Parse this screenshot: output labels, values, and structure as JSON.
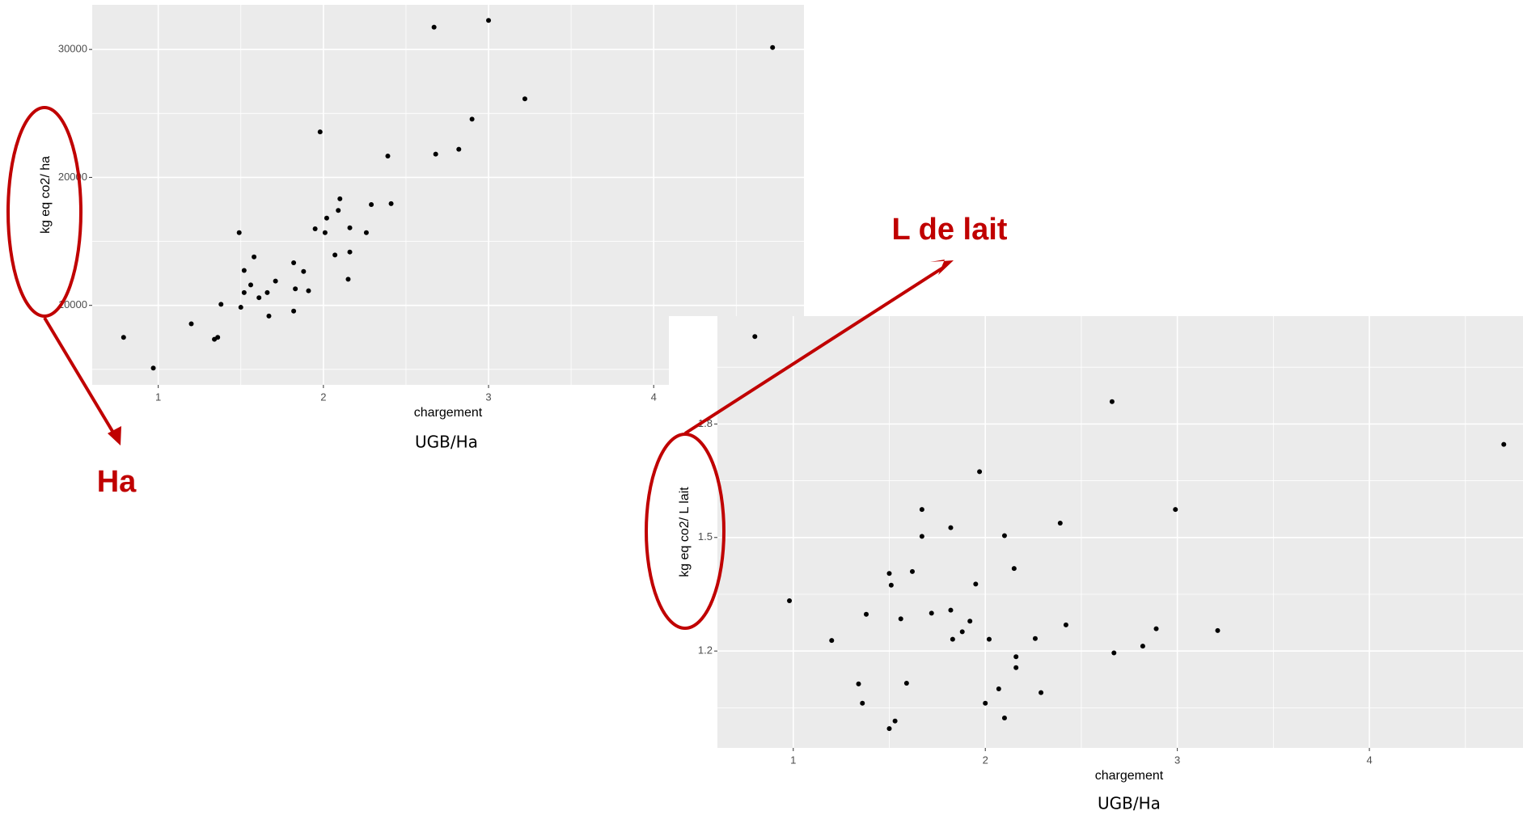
{
  "chart_data": [
    {
      "type": "scatter",
      "xlabel": "chargement",
      "ylabel": "kg eq co2/ ha",
      "x_unit": "UGB/Ha",
      "xlim": [
        0.6,
        4.91
      ],
      "ylim": [
        3788,
        33485
      ],
      "xticks": [
        1,
        2,
        3,
        4
      ],
      "yticks": [
        10000,
        20000,
        30000
      ],
      "minor_xticks": [
        1.5,
        2.5,
        3.5,
        4.5
      ],
      "minor_yticks": [
        5000,
        15000,
        25000
      ],
      "grid": true,
      "color": "#000000",
      "x": [
        0.79,
        0.97,
        1.2,
        1.34,
        1.36,
        1.38,
        1.49,
        1.5,
        1.52,
        1.52,
        1.56,
        1.58,
        1.61,
        1.66,
        1.67,
        1.71,
        1.82,
        1.82,
        1.83,
        1.88,
        1.91,
        1.95,
        1.98,
        2.01,
        2.02,
        2.07,
        2.09,
        2.1,
        2.15,
        2.16,
        2.16,
        2.26,
        2.29,
        2.39,
        2.41,
        2.67,
        2.68,
        2.82,
        2.9,
        3.0,
        3.22,
        4.72
      ],
      "values": [
        7500,
        5100,
        8560,
        7350,
        7500,
        10080,
        15680,
        9850,
        12730,
        11000,
        11600,
        13790,
        10600,
        11000,
        9170,
        11900,
        13330,
        9550,
        11290,
        12650,
        11140,
        15980,
        23560,
        15680,
        16820,
        13940,
        17420,
        18330,
        12040,
        14170,
        16060,
        15680,
        17880,
        21670,
        17950,
        31740,
        21820,
        22200,
        24550,
        32270,
        26140,
        30150
      ]
    },
    {
      "type": "scatter",
      "xlabel": "chargement",
      "ylabel": "kg eq co2/ L lait",
      "x_unit": "UGB/Ha",
      "xlim": [
        0.605,
        4.8
      ],
      "ylim": [
        0.944,
        2.085
      ],
      "xticks": [
        1,
        2,
        3,
        4
      ],
      "yticks": [
        1.2,
        1.5,
        1.8
      ],
      "minor_xticks": [
        1.5,
        2.5,
        3.5,
        4.5
      ],
      "minor_yticks": [
        1.05,
        1.35,
        1.65,
        1.95
      ],
      "grid": true,
      "color": "#000000",
      "x": [
        0.8,
        0.98,
        1.2,
        1.34,
        1.36,
        1.38,
        1.5,
        1.51,
        1.5,
        1.53,
        1.56,
        1.59,
        1.62,
        1.67,
        1.67,
        1.72,
        1.82,
        1.82,
        1.83,
        1.88,
        1.92,
        1.95,
        1.97,
        2.0,
        2.02,
        2.07,
        2.1,
        2.1,
        2.15,
        2.16,
        2.16,
        2.26,
        2.29,
        2.39,
        2.42,
        2.66,
        2.67,
        2.82,
        2.89,
        2.99,
        3.21,
        4.7
      ],
      "values": [
        2.031,
        1.333,
        1.228,
        1.113,
        1.062,
        1.297,
        1.405,
        1.374,
        0.995,
        1.015,
        1.285,
        1.115,
        1.41,
        1.574,
        1.503,
        1.3,
        1.526,
        1.308,
        1.231,
        1.251,
        1.279,
        1.377,
        1.674,
        1.062,
        1.231,
        1.1,
        1.023,
        1.505,
        1.418,
        1.185,
        1.156,
        1.233,
        1.09,
        1.538,
        1.269,
        1.859,
        1.195,
        1.213,
        1.259,
        1.574,
        1.254,
        1.746
      ]
    }
  ],
  "annotations": {
    "ha": "Ha",
    "lait": "L de lait"
  }
}
